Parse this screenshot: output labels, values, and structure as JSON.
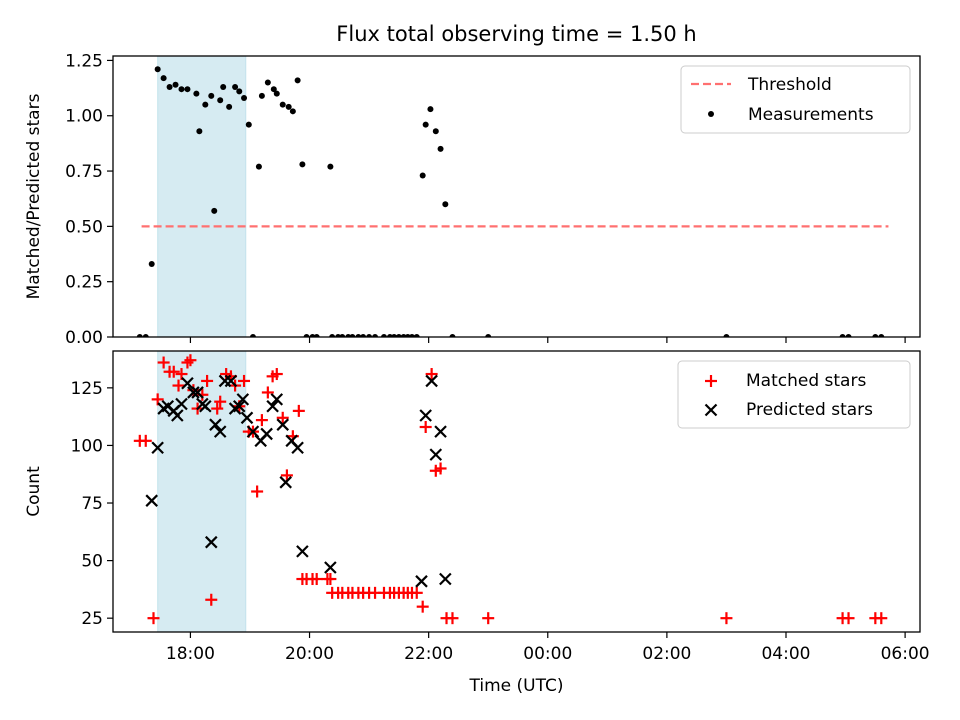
{
  "title": "Flux total observing time = 1.50 h",
  "chart_data": [
    {
      "type": "scatter",
      "ylabel": "Matched/Predicted stars",
      "xlabel": "",
      "xlim": [
        16.7,
        30.25
      ],
      "ylim": [
        0,
        1.27
      ],
      "yticks": [
        0.0,
        0.25,
        0.5,
        0.75,
        1.0,
        1.25
      ],
      "ytick_labels": [
        "0.00",
        "0.25",
        "0.50",
        "0.75",
        "1.00",
        "1.25"
      ],
      "shaded_span": [
        17.45,
        18.93
      ],
      "threshold": {
        "name": "Threshold",
        "value": 0.5,
        "x_range": [
          17.18,
          29.72
        ],
        "color": "#ff7070"
      },
      "legend": {
        "position": "top-right",
        "entries": [
          "Threshold",
          "Measurements"
        ]
      },
      "measurements": {
        "name": "Measurements",
        "color": "#000000",
        "points": [
          [
            17.15,
            0.0
          ],
          [
            17.25,
            0.0
          ],
          [
            17.35,
            0.33
          ],
          [
            17.45,
            1.21
          ],
          [
            17.55,
            1.17
          ],
          [
            17.65,
            1.13
          ],
          [
            17.75,
            1.14
          ],
          [
            17.85,
            1.12
          ],
          [
            17.95,
            1.12
          ],
          [
            18.1,
            1.1
          ],
          [
            18.15,
            0.93
          ],
          [
            18.25,
            1.05
          ],
          [
            18.35,
            1.09
          ],
          [
            18.4,
            0.57
          ],
          [
            18.5,
            1.07
          ],
          [
            18.55,
            1.13
          ],
          [
            18.65,
            1.04
          ],
          [
            18.75,
            1.13
          ],
          [
            18.82,
            1.11
          ],
          [
            18.9,
            1.08
          ],
          [
            18.98,
            0.96
          ],
          [
            19.05,
            0.0
          ],
          [
            19.15,
            0.77
          ],
          [
            19.2,
            1.09
          ],
          [
            19.3,
            1.15
          ],
          [
            19.4,
            1.12
          ],
          [
            19.45,
            1.1
          ],
          [
            19.55,
            1.05
          ],
          [
            19.65,
            1.04
          ],
          [
            19.72,
            1.02
          ],
          [
            19.8,
            1.16
          ],
          [
            19.88,
            0.78
          ],
          [
            19.95,
            0.0
          ],
          [
            20.05,
            0.0
          ],
          [
            20.12,
            0.0
          ],
          [
            20.35,
            0.77
          ],
          [
            20.38,
            0.0
          ],
          [
            20.48,
            0.0
          ],
          [
            20.55,
            0.0
          ],
          [
            20.65,
            0.0
          ],
          [
            20.72,
            0.0
          ],
          [
            20.82,
            0.0
          ],
          [
            20.9,
            0.0
          ],
          [
            21.0,
            0.0
          ],
          [
            21.1,
            0.0
          ],
          [
            21.25,
            0.0
          ],
          [
            21.35,
            0.0
          ],
          [
            21.42,
            0.0
          ],
          [
            21.5,
            0.0
          ],
          [
            21.58,
            0.0
          ],
          [
            21.65,
            0.0
          ],
          [
            21.72,
            0.0
          ],
          [
            21.8,
            0.0
          ],
          [
            21.9,
            0.73
          ],
          [
            21.95,
            0.96
          ],
          [
            22.03,
            1.03
          ],
          [
            22.12,
            0.93
          ],
          [
            22.2,
            0.85
          ],
          [
            22.28,
            0.6
          ],
          [
            22.4,
            0.0
          ],
          [
            23.0,
            0.0
          ],
          [
            27.0,
            0.0
          ],
          [
            28.95,
            0.0
          ],
          [
            29.05,
            0.0
          ],
          [
            29.5,
            0.0
          ],
          [
            29.6,
            0.0
          ]
        ]
      }
    },
    {
      "type": "scatter",
      "ylabel": "Count",
      "xlabel": "Time (UTC)",
      "xlim": [
        16.7,
        30.25
      ],
      "ylim": [
        19,
        141
      ],
      "yticks": [
        25,
        50,
        75,
        100,
        125
      ],
      "ytick_labels": [
        "25",
        "50",
        "75",
        "100",
        "125"
      ],
      "xticks": [
        18,
        20,
        22,
        24,
        26,
        28,
        30
      ],
      "xtick_labels": [
        "18:00",
        "20:00",
        "22:00",
        "00:00",
        "02:00",
        "04:00",
        "06:00"
      ],
      "shaded_span": [
        17.45,
        18.93
      ],
      "legend": {
        "position": "top-right",
        "entries": [
          "Matched stars",
          "Predicted stars"
        ]
      },
      "series": [
        {
          "name": "Matched stars",
          "marker": "plus",
          "color": "#ff0000",
          "points": [
            [
              17.15,
              102
            ],
            [
              17.25,
              102
            ],
            [
              17.38,
              25
            ],
            [
              17.45,
              120
            ],
            [
              17.55,
              136
            ],
            [
              17.65,
              132
            ],
            [
              17.72,
              132
            ],
            [
              17.8,
              126
            ],
            [
              17.85,
              131
            ],
            [
              17.95,
              136
            ],
            [
              18.0,
              137
            ],
            [
              18.05,
              124
            ],
            [
              18.12,
              116
            ],
            [
              18.2,
              122
            ],
            [
              18.28,
              128
            ],
            [
              18.35,
              33
            ],
            [
              18.45,
              116
            ],
            [
              18.5,
              119
            ],
            [
              18.6,
              131
            ],
            [
              18.68,
              130
            ],
            [
              18.75,
              126
            ],
            [
              18.82,
              117
            ],
            [
              18.9,
              128
            ],
            [
              18.98,
              106
            ],
            [
              19.05,
              106
            ],
            [
              19.12,
              80
            ],
            [
              19.2,
              111
            ],
            [
              19.3,
              123
            ],
            [
              19.38,
              130
            ],
            [
              19.45,
              131
            ],
            [
              19.55,
              112
            ],
            [
              19.62,
              87
            ],
            [
              19.72,
              104
            ],
            [
              19.82,
              115
            ],
            [
              19.88,
              42
            ],
            [
              19.95,
              42
            ],
            [
              20.05,
              42
            ],
            [
              20.12,
              42
            ],
            [
              20.3,
              42
            ],
            [
              20.35,
              42
            ],
            [
              20.38,
              36
            ],
            [
              20.48,
              36
            ],
            [
              20.55,
              36
            ],
            [
              20.65,
              36
            ],
            [
              20.72,
              36
            ],
            [
              20.82,
              36
            ],
            [
              20.9,
              36
            ],
            [
              21.0,
              36
            ],
            [
              21.1,
              36
            ],
            [
              21.25,
              36
            ],
            [
              21.35,
              36
            ],
            [
              21.42,
              36
            ],
            [
              21.5,
              36
            ],
            [
              21.58,
              36
            ],
            [
              21.65,
              36
            ],
            [
              21.72,
              36
            ],
            [
              21.8,
              36
            ],
            [
              21.9,
              30
            ],
            [
              21.95,
              108
            ],
            [
              22.05,
              131
            ],
            [
              22.12,
              89
            ],
            [
              22.2,
              90
            ],
            [
              22.3,
              25
            ],
            [
              22.4,
              25
            ],
            [
              23.0,
              25
            ],
            [
              27.0,
              25
            ],
            [
              28.95,
              25
            ],
            [
              29.05,
              25
            ],
            [
              29.5,
              25
            ],
            [
              29.6,
              25
            ]
          ]
        },
        {
          "name": "Predicted stars",
          "marker": "x",
          "color": "#000000",
          "points": [
            [
              17.35,
              76
            ],
            [
              17.45,
              99
            ],
            [
              17.55,
              116
            ],
            [
              17.62,
              117
            ],
            [
              17.72,
              115
            ],
            [
              17.78,
              113
            ],
            [
              17.85,
              118
            ],
            [
              17.95,
              127
            ],
            [
              18.05,
              123
            ],
            [
              18.12,
              123
            ],
            [
              18.2,
              118
            ],
            [
              18.25,
              117
            ],
            [
              18.35,
              58
            ],
            [
              18.42,
              109
            ],
            [
              18.5,
              106
            ],
            [
              18.58,
              128
            ],
            [
              18.68,
              128
            ],
            [
              18.75,
              116
            ],
            [
              18.82,
              117
            ],
            [
              18.88,
              120
            ],
            [
              18.95,
              112
            ],
            [
              19.05,
              106
            ],
            [
              19.18,
              102
            ],
            [
              19.28,
              105
            ],
            [
              19.38,
              117
            ],
            [
              19.45,
              120
            ],
            [
              19.55,
              109
            ],
            [
              19.6,
              84
            ],
            [
              19.7,
              102
            ],
            [
              19.8,
              99
            ],
            [
              19.88,
              54
            ],
            [
              20.35,
              47
            ],
            [
              21.88,
              41
            ],
            [
              21.95,
              113
            ],
            [
              22.05,
              128
            ],
            [
              22.12,
              96
            ],
            [
              22.2,
              106
            ],
            [
              22.28,
              42
            ]
          ]
        }
      ]
    }
  ]
}
